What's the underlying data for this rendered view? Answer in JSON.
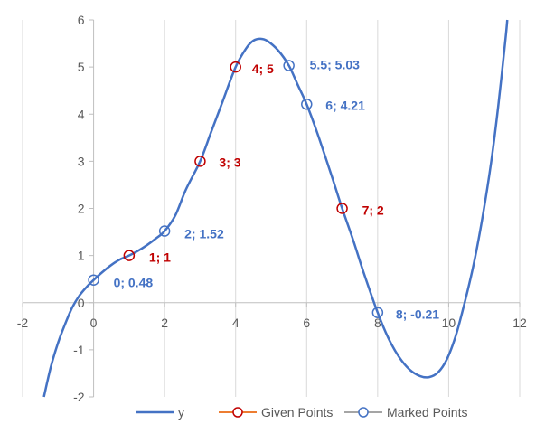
{
  "chart_data": {
    "type": "scatter",
    "title": "",
    "xlabel": "",
    "ylabel": "",
    "xlim": [
      -2,
      12
    ],
    "ylim": [
      -2,
      6
    ],
    "x_ticks": [
      -2,
      0,
      2,
      4,
      6,
      8,
      10,
      12
    ],
    "y_ticks": [
      -2,
      -1,
      0,
      1,
      2,
      3,
      4,
      5,
      6
    ],
    "grid": "vertical",
    "legend_position": "bottom",
    "series": [
      {
        "name": "y",
        "kind": "smooth-line",
        "color": "#4472C4",
        "points": [
          [
            -1.4,
            -2.0
          ],
          [
            -1.2,
            -1.35
          ],
          [
            -1.0,
            -0.85
          ],
          [
            -0.8,
            -0.45
          ],
          [
            -0.6,
            -0.1
          ],
          [
            -0.4,
            0.15
          ],
          [
            -0.2,
            0.33
          ],
          [
            0.0,
            0.48
          ],
          [
            0.25,
            0.65
          ],
          [
            0.5,
            0.8
          ],
          [
            0.75,
            0.92
          ],
          [
            1.0,
            1.0
          ],
          [
            1.25,
            1.1
          ],
          [
            1.5,
            1.22
          ],
          [
            1.75,
            1.36
          ],
          [
            2.0,
            1.52
          ],
          [
            2.3,
            1.85
          ],
          [
            2.6,
            2.4
          ],
          [
            3.0,
            3.0
          ],
          [
            3.3,
            3.6
          ],
          [
            3.6,
            4.2
          ],
          [
            4.0,
            5.0
          ],
          [
            4.3,
            5.4
          ],
          [
            4.5,
            5.56
          ],
          [
            4.7,
            5.6
          ],
          [
            4.9,
            5.55
          ],
          [
            5.2,
            5.35
          ],
          [
            5.5,
            5.03
          ],
          [
            5.75,
            4.62
          ],
          [
            6.0,
            4.21
          ],
          [
            6.3,
            3.6
          ],
          [
            6.7,
            2.7
          ],
          [
            7.0,
            2.0
          ],
          [
            7.3,
            1.35
          ],
          [
            7.6,
            0.65
          ],
          [
            8.0,
            -0.21
          ],
          [
            8.3,
            -0.75
          ],
          [
            8.6,
            -1.15
          ],
          [
            8.9,
            -1.42
          ],
          [
            9.2,
            -1.56
          ],
          [
            9.45,
            -1.58
          ],
          [
            9.7,
            -1.48
          ],
          [
            9.95,
            -1.2
          ],
          [
            10.2,
            -0.7
          ],
          [
            10.45,
            0.0
          ],
          [
            10.7,
            0.8
          ],
          [
            10.95,
            1.8
          ],
          [
            11.2,
            3.0
          ],
          [
            11.4,
            4.2
          ],
          [
            11.6,
            5.6
          ],
          [
            11.65,
            6.0
          ]
        ]
      },
      {
        "name": "Given Points",
        "kind": "markers",
        "color": "#C00000",
        "line_color": "#ED7D31",
        "points": [
          [
            1,
            1
          ],
          [
            3,
            3
          ],
          [
            4,
            5
          ],
          [
            7,
            2
          ]
        ],
        "labels": [
          "1; 1",
          "3; 3",
          "4; 5",
          "7; 2"
        ]
      },
      {
        "name": "Marked Points",
        "kind": "markers",
        "color": "#4472C4",
        "line_color": "#A5A5A5",
        "points": [
          [
            0,
            0.48
          ],
          [
            2,
            1.52
          ],
          [
            5.5,
            5.03
          ],
          [
            6,
            4.21
          ],
          [
            8,
            -0.21
          ]
        ],
        "labels": [
          "0; 0.48",
          "2; 1.52",
          "5.5; 5.03",
          "6; 4.21",
          "8; -0.21"
        ]
      }
    ]
  }
}
